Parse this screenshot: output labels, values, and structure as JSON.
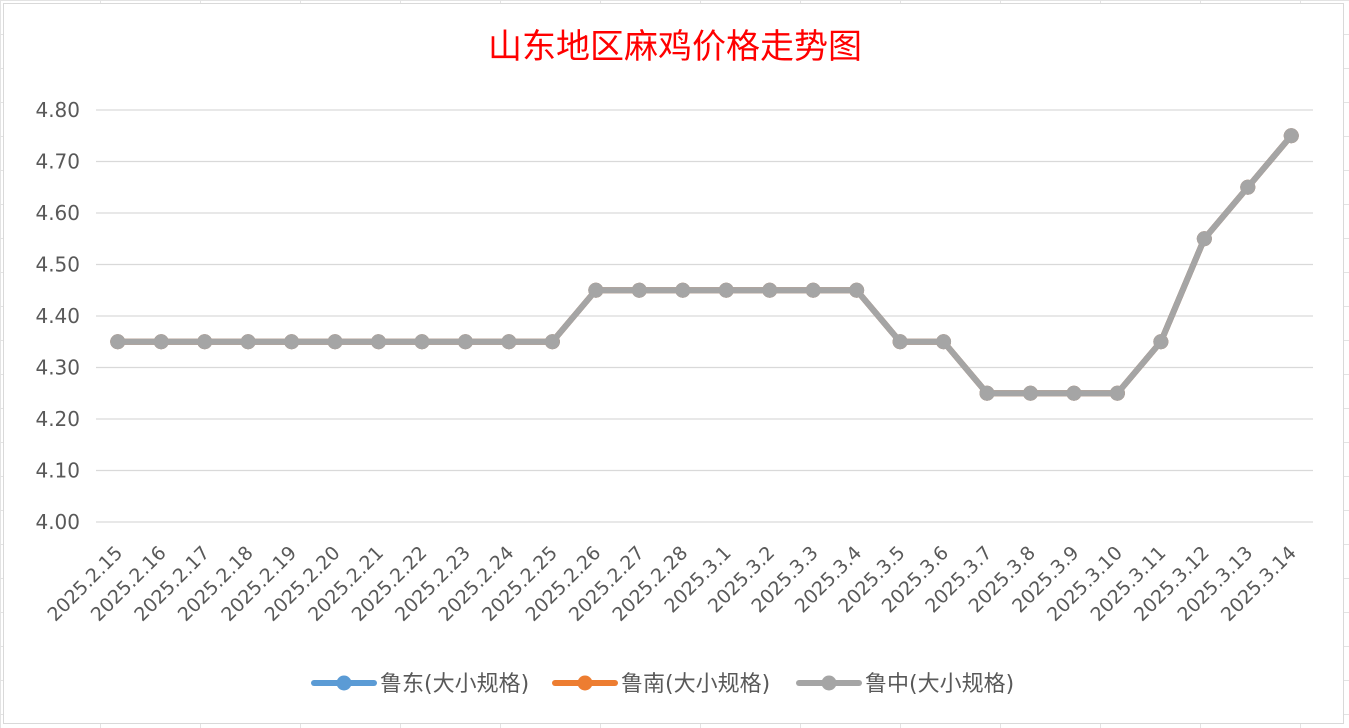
{
  "chart_data": {
    "type": "line",
    "title": "山东地区麻鸡价格走势图",
    "xlabel": "",
    "ylabel": "",
    "ylim": [
      4.0,
      4.8
    ],
    "y_ticks": [
      "4.00",
      "4.10",
      "4.20",
      "4.30",
      "4.40",
      "4.50",
      "4.60",
      "4.70",
      "4.80"
    ],
    "grid": true,
    "legend_position": "bottom",
    "categories": [
      "2025.2.15",
      "2025.2.16",
      "2025.2.17",
      "2025.2.18",
      "2025.2.19",
      "2025.2.20",
      "2025.2.21",
      "2025.2.22",
      "2025.2.23",
      "2025.2.24",
      "2025.2.25",
      "2025.2.26",
      "2025.2.27",
      "2025.2.28",
      "2025.3.1",
      "2025.3.2",
      "2025.3.3",
      "2025.3.4",
      "2025.3.5",
      "2025.3.6",
      "2025.3.7",
      "2025.3.8",
      "2025.3.9",
      "2025.3.10",
      "2025.3.11",
      "2025.3.12",
      "2025.3.13",
      "2025.3.14"
    ],
    "series": [
      {
        "name": "鲁东(大小规格)",
        "color": "#5b9bd5",
        "values": [
          4.35,
          4.35,
          4.35,
          4.35,
          4.35,
          4.35,
          4.35,
          4.35,
          4.35,
          4.35,
          4.35,
          4.45,
          4.45,
          4.45,
          4.45,
          4.45,
          4.45,
          4.45,
          4.35,
          4.35,
          4.25,
          4.25,
          4.25,
          4.25,
          4.35,
          4.55,
          4.65,
          4.75
        ]
      },
      {
        "name": "鲁南(大小规格)",
        "color": "#ed7d31",
        "values": [
          4.35,
          4.35,
          4.35,
          4.35,
          4.35,
          4.35,
          4.35,
          4.35,
          4.35,
          4.35,
          4.35,
          4.45,
          4.45,
          4.45,
          4.45,
          4.45,
          4.45,
          4.45,
          4.35,
          4.35,
          4.25,
          4.25,
          4.25,
          4.25,
          4.35,
          4.55,
          4.65,
          4.75
        ]
      },
      {
        "name": "鲁中(大小规格)",
        "color": "#a5a5a5",
        "values": [
          4.35,
          4.35,
          4.35,
          4.35,
          4.35,
          4.35,
          4.35,
          4.35,
          4.35,
          4.35,
          4.35,
          4.45,
          4.45,
          4.45,
          4.45,
          4.45,
          4.45,
          4.45,
          4.35,
          4.35,
          4.25,
          4.25,
          4.25,
          4.25,
          4.35,
          4.55,
          4.65,
          4.75
        ]
      }
    ]
  }
}
